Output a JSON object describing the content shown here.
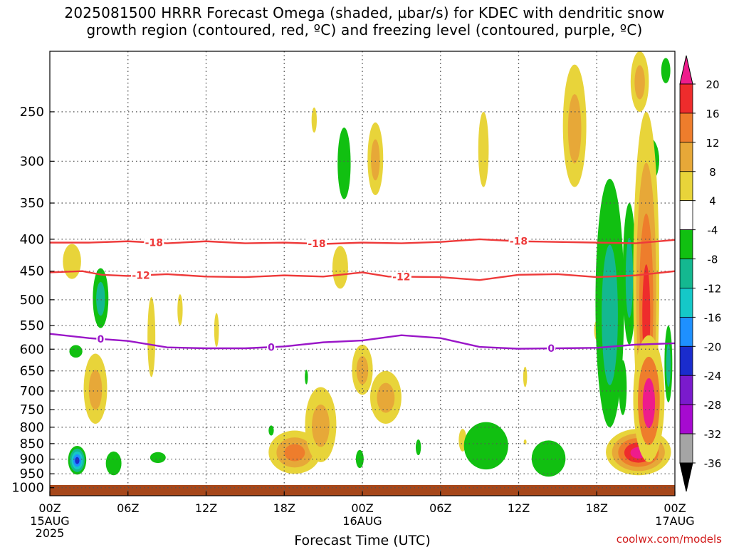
{
  "title": {
    "line1": "2025081500 HRRR Forecast Omega (shaded, µbar/s) for KDEC with dendritic snow",
    "line2": "growth region (contoured, red, ºC) and freezing level (contoured, purple, ºC)"
  },
  "credit": "coolwx.com/models",
  "chart_data": {
    "type": "heatmap",
    "title": "2025081500 HRRR Forecast Omega (shaded, µbar/s) for KDEC with dendritic snow growth region (contoured, red, ºC) and freezing level (contoured, purple, ºC)",
    "xlabel": "Forecast Time (UTC)",
    "ylabel": "",
    "x_range_hours": [
      0,
      48
    ],
    "y_scale": "log",
    "y_range_hpa": [
      1030,
      200
    ],
    "grid": true,
    "x_ticks": [
      {
        "hour": 0,
        "label": "00Z",
        "sub": [
          "15AUG",
          "2025"
        ]
      },
      {
        "hour": 6,
        "label": "06Z",
        "sub": []
      },
      {
        "hour": 12,
        "label": "12Z",
        "sub": []
      },
      {
        "hour": 18,
        "label": "18Z",
        "sub": []
      },
      {
        "hour": 24,
        "label": "00Z",
        "sub": [
          "16AUG"
        ]
      },
      {
        "hour": 30,
        "label": "06Z",
        "sub": []
      },
      {
        "hour": 36,
        "label": "12Z",
        "sub": []
      },
      {
        "hour": 42,
        "label": "18Z",
        "sub": []
      },
      {
        "hour": 48,
        "label": "00Z",
        "sub": [
          "17AUG"
        ]
      }
    ],
    "y_ticks": [
      "250",
      "300",
      "350",
      "400",
      "450",
      "500",
      "550",
      "600",
      "650",
      "700",
      "750",
      "800",
      "850",
      "900",
      "950",
      "1000"
    ],
    "colorbar": {
      "labels": [
        "20",
        "16",
        "12",
        "8",
        "4",
        "-4",
        "-8",
        "-12",
        "-16",
        "-20",
        "-24",
        "-28",
        "-32",
        "-36"
      ],
      "top_arrow_color": "#ee1c8c",
      "bottom_arrow_color": "#000000",
      "bins": [
        {
          "lo": 16,
          "hi": 20,
          "color": "#ee2c2c"
        },
        {
          "lo": 12,
          "hi": 16,
          "color": "#ee7d2c"
        },
        {
          "lo": 8,
          "hi": 12,
          "color": "#e7a838"
        },
        {
          "lo": 4,
          "hi": 8,
          "color": "#e8d43a"
        },
        {
          "lo": -4,
          "hi": 4,
          "color": "#ffffff"
        },
        {
          "lo": -8,
          "hi": -4,
          "color": "#11c011"
        },
        {
          "lo": -12,
          "hi": -8,
          "color": "#14b890"
        },
        {
          "lo": -16,
          "hi": -12,
          "color": "#15c8c8"
        },
        {
          "lo": -20,
          "hi": -16,
          "color": "#1e90ff"
        },
        {
          "lo": -24,
          "hi": -20,
          "color": "#1a2ccd"
        },
        {
          "lo": -28,
          "hi": -24,
          "color": "#7a1acd"
        },
        {
          "lo": -32,
          "hi": -28,
          "color": "#a60ad0"
        },
        {
          "lo": -36,
          "hi": -32,
          "color": "#a5a5a5"
        }
      ]
    },
    "omega_features": [
      {
        "t": 1.7,
        "p": 435,
        "dt": 0.7,
        "dp": 28,
        "cells": [
          "#e8d43a"
        ]
      },
      {
        "t": 2.0,
        "p": 605,
        "dt": 0.5,
        "dp": 14,
        "cells": [
          "#11c011"
        ]
      },
      {
        "t": 3.5,
        "p": 700,
        "dt": 0.9,
        "dp": 90,
        "cells": [
          "#e8d43a",
          "#e7a838"
        ]
      },
      {
        "t": 2.1,
        "p": 905,
        "dt": 0.7,
        "dp": 48,
        "cells": [
          "#11c011",
          "#14b890",
          "#15c8c8",
          "#1e90ff",
          "#1a2ccd"
        ]
      },
      {
        "t": 3.9,
        "p": 500,
        "dt": 0.6,
        "dp": 55,
        "cells": [
          "#11c011",
          "#14b890"
        ]
      },
      {
        "t": 4.9,
        "p": 915,
        "dt": 0.6,
        "dp": 40,
        "cells": [
          "#11c011"
        ]
      },
      {
        "t": 8.3,
        "p": 895,
        "dt": 0.6,
        "dp": 18,
        "cells": [
          "#11c011"
        ]
      },
      {
        "t": 7.8,
        "p": 580,
        "dt": 0.3,
        "dp": 85,
        "cells": [
          "#e8d43a"
        ]
      },
      {
        "t": 10.0,
        "p": 520,
        "dt": 0.2,
        "dp": 30,
        "cells": [
          "#e8d43a"
        ]
      },
      {
        "t": 12.8,
        "p": 560,
        "dt": 0.18,
        "dp": 35,
        "cells": [
          "#e8d43a"
        ]
      },
      {
        "t": 17.0,
        "p": 810,
        "dt": 0.2,
        "dp": 15,
        "cells": [
          "#11c011"
        ]
      },
      {
        "t": 19.7,
        "p": 665,
        "dt": 0.12,
        "dp": 18,
        "cells": [
          "#11c011"
        ]
      },
      {
        "t": 18.8,
        "p": 880,
        "dt": 2.0,
        "dp": 70,
        "cells": [
          "#e8d43a",
          "#e7a838",
          "#ee7d2c"
        ]
      },
      {
        "t": 20.8,
        "p": 800,
        "dt": 1.2,
        "dp": 110,
        "cells": [
          "#e8d43a",
          "#e7a838"
        ]
      },
      {
        "t": 20.3,
        "p": 258,
        "dt": 0.2,
        "dp": 12,
        "cells": [
          "#e8d43a"
        ]
      },
      {
        "t": 22.3,
        "p": 445,
        "dt": 0.6,
        "dp": 35,
        "cells": [
          "#e8d43a"
        ]
      },
      {
        "t": 22.6,
        "p": 305,
        "dt": 0.5,
        "dp": 40,
        "cells": [
          "#11c011"
        ]
      },
      {
        "t": 25.0,
        "p": 300,
        "dt": 0.6,
        "dp": 40,
        "cells": [
          "#e8d43a",
          "#e7a838"
        ]
      },
      {
        "t": 24.0,
        "p": 650,
        "dt": 0.8,
        "dp": 60,
        "cells": [
          "#e8d43a",
          "#e7a838"
        ]
      },
      {
        "t": 25.8,
        "p": 720,
        "dt": 1.2,
        "dp": 70,
        "cells": [
          "#e8d43a",
          "#e7a838"
        ]
      },
      {
        "t": 23.8,
        "p": 900,
        "dt": 0.3,
        "dp": 30,
        "cells": [
          "#11c011"
        ]
      },
      {
        "t": 28.3,
        "p": 862,
        "dt": 0.2,
        "dp": 25,
        "cells": [
          "#11c011"
        ]
      },
      {
        "t": 31.7,
        "p": 840,
        "dt": 0.3,
        "dp": 35,
        "cells": [
          "#e8d43a"
        ]
      },
      {
        "t": 33.3,
        "p": 290,
        "dt": 0.4,
        "dp": 40,
        "cells": [
          "#e8d43a"
        ]
      },
      {
        "t": 33.5,
        "p": 860,
        "dt": 1.7,
        "dp": 75,
        "cells": [
          "#11c011"
        ]
      },
      {
        "t": 36.5,
        "p": 665,
        "dt": 0.15,
        "dp": 25,
        "cells": [
          "#e8d43a"
        ]
      },
      {
        "t": 36.5,
        "p": 845,
        "dt": 0.1,
        "dp": 8,
        "cells": [
          "#e8d43a"
        ]
      },
      {
        "t": 38.3,
        "p": 900,
        "dt": 1.3,
        "dp": 60,
        "cells": [
          "#11c011"
        ]
      },
      {
        "t": 40.3,
        "p": 270,
        "dt": 0.9,
        "dp": 60,
        "cells": [
          "#e8d43a",
          "#e7a838"
        ]
      },
      {
        "t": 42.0,
        "p": 560,
        "dt": 0.2,
        "dp": 20,
        "cells": [
          "#e8d43a"
        ]
      },
      {
        "t": 43.0,
        "p": 560,
        "dt": 1.1,
        "dp": 240,
        "cells": [
          "#11c011",
          "#14b890"
        ]
      },
      {
        "t": 44.5,
        "p": 470,
        "dt": 0.5,
        "dp": 120,
        "cells": [
          "#11c011",
          "#14b890"
        ]
      },
      {
        "t": 45.3,
        "p": 225,
        "dt": 0.7,
        "dp": 25,
        "cells": [
          "#e8d43a",
          "#e7a838"
        ]
      },
      {
        "t": 46.0,
        "p": 300,
        "dt": 0.8,
        "dp": 25,
        "cells": [
          "#11c011",
          "#14b890"
        ]
      },
      {
        "t": 44.0,
        "p": 695,
        "dt": 0.3,
        "dp": 70,
        "cells": [
          "#11c011"
        ]
      },
      {
        "t": 45.2,
        "p": 880,
        "dt": 2.5,
        "dp": 75,
        "cells": [
          "#e8d43a",
          "#e7a838",
          "#ee7d2c",
          "#ee2c2c",
          "#ee1c8c"
        ]
      },
      {
        "t": 45.8,
        "p": 560,
        "dt": 1.0,
        "dp": 310,
        "cells": [
          "#e8d43a",
          "#e7a838",
          "#ee7d2c",
          "#ee2c2c"
        ]
      },
      {
        "t": 46.0,
        "p": 740,
        "dt": 1.2,
        "dp": 170,
        "cells": [
          "#e8d43a",
          "#ee7d2c",
          "#ee1c8c"
        ]
      },
      {
        "t": 47.5,
        "p": 640,
        "dt": 0.3,
        "dp": 90,
        "cells": [
          "#11c011",
          "#14b890"
        ]
      },
      {
        "t": 47.3,
        "p": 215,
        "dt": 0.35,
        "dp": 10,
        "cells": [
          "#11c011"
        ]
      }
    ],
    "contours": [
      {
        "name": "-18",
        "color": "#ee3a3a",
        "labels": [
          {
            "t": 8,
            "text": "-18"
          },
          {
            "t": 20.5,
            "text": "-18"
          },
          {
            "t": 36,
            "text": "-18"
          }
        ],
        "points": [
          [
            0,
            405
          ],
          [
            3,
            405
          ],
          [
            6,
            403
          ],
          [
            9,
            406
          ],
          [
            12,
            403
          ],
          [
            15,
            406
          ],
          [
            18,
            405
          ],
          [
            21,
            407
          ],
          [
            24,
            405
          ],
          [
            27,
            406
          ],
          [
            30,
            404
          ],
          [
            33,
            400
          ],
          [
            36,
            403
          ],
          [
            39,
            404
          ],
          [
            42,
            405
          ],
          [
            45,
            406
          ],
          [
            48,
            401
          ]
        ]
      },
      {
        "name": "-12",
        "color": "#ee3a3a",
        "labels": [
          {
            "t": 7,
            "text": "-12"
          },
          {
            "t": 27,
            "text": "-12"
          }
        ],
        "points": [
          [
            0,
            452
          ],
          [
            2.5,
            450
          ],
          [
            4,
            456
          ],
          [
            6,
            458
          ],
          [
            9,
            455
          ],
          [
            12,
            459
          ],
          [
            15,
            460
          ],
          [
            18,
            457
          ],
          [
            21,
            459
          ],
          [
            24,
            452
          ],
          [
            26,
            459
          ],
          [
            30,
            460
          ],
          [
            33,
            465
          ],
          [
            36,
            456
          ],
          [
            39,
            455
          ],
          [
            42,
            460
          ],
          [
            45,
            457
          ],
          [
            48,
            450
          ]
        ]
      },
      {
        "name": "0",
        "color": "#9a16c8",
        "labels": [
          {
            "t": 3.9,
            "text": "0"
          },
          {
            "t": 17,
            "text": "0"
          },
          {
            "t": 38.5,
            "text": "0"
          }
        ],
        "points": [
          [
            0,
            567
          ],
          [
            3,
            576
          ],
          [
            6,
            582
          ],
          [
            9,
            596
          ],
          [
            12,
            598
          ],
          [
            15,
            598
          ],
          [
            18,
            594
          ],
          [
            21,
            585
          ],
          [
            24,
            581
          ],
          [
            27,
            570
          ],
          [
            30,
            576
          ],
          [
            33,
            595
          ],
          [
            36,
            599
          ],
          [
            39,
            598
          ],
          [
            42,
            597
          ],
          [
            45,
            590
          ],
          [
            48,
            587
          ]
        ]
      }
    ],
    "ground_level_hpa": 990,
    "ground_color": "#a6471a"
  }
}
